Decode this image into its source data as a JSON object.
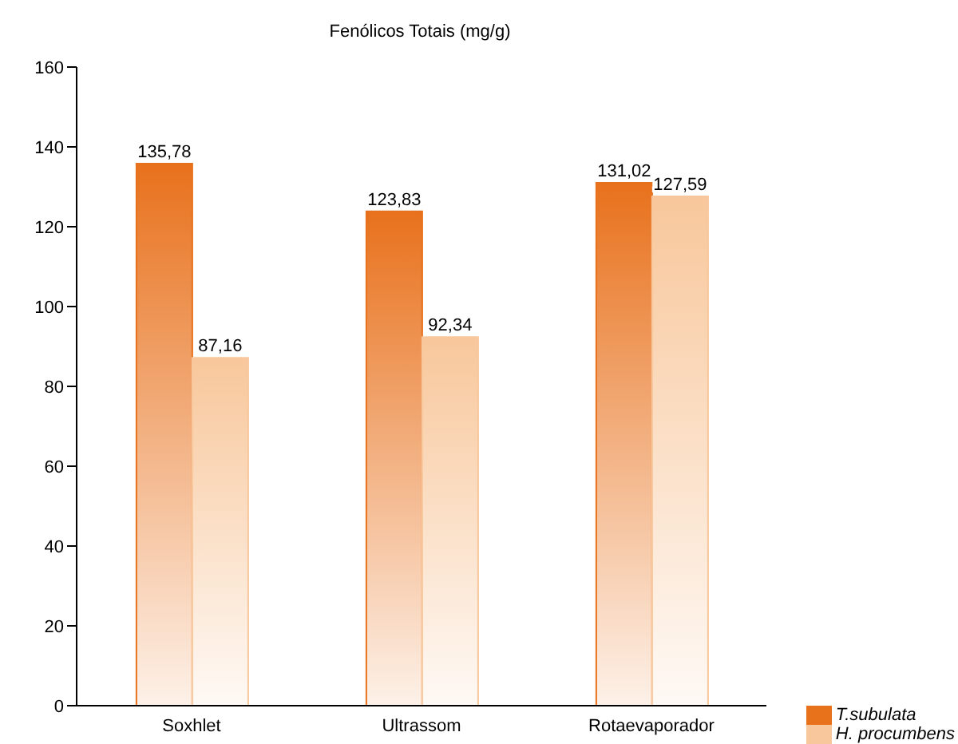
{
  "chart_data": {
    "type": "bar",
    "title": "Fenólicos Totais (mg/g)",
    "categories": [
      "Soxhlet",
      "Ultrassom",
      "Rotaevaporador"
    ],
    "series": [
      {
        "name": "T.subulata",
        "color": "#e8711c",
        "values": [
          135.78,
          123.83,
          131.02
        ],
        "value_labels": [
          "135,78",
          "123,83",
          "131,02"
        ]
      },
      {
        "name": "H. procumbens",
        "color": "#f8c79b",
        "values": [
          87.16,
          92.34,
          127.59
        ],
        "value_labels": [
          "87,16",
          "92,34",
          "127,59"
        ]
      }
    ],
    "ylim": [
      0,
      160
    ],
    "yticks": [
      0,
      20,
      40,
      60,
      80,
      100,
      120,
      140,
      160
    ],
    "grid": false,
    "legend": "bottom right"
  }
}
